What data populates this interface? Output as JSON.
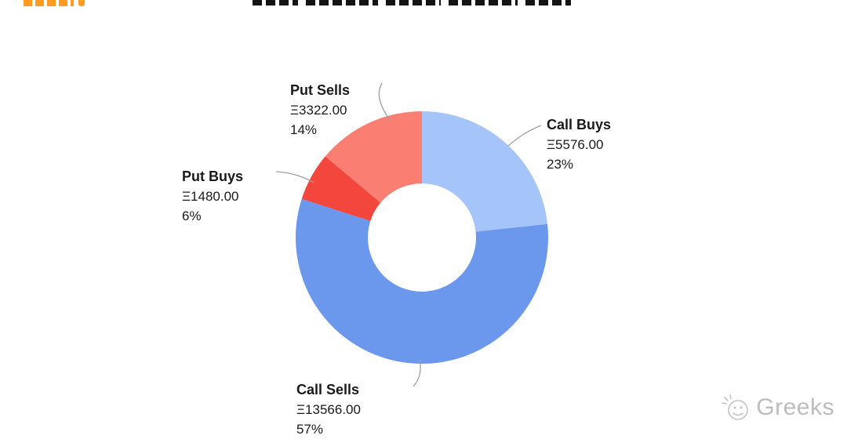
{
  "page": {
    "background": "#ffffff",
    "logo_color": "#ff9b1e",
    "title_color": "#141414"
  },
  "watermark": {
    "label": "Greeks",
    "icon": "wechat-emoji-icon",
    "color": "#bdbdbd"
  },
  "chart_data": {
    "type": "pie",
    "subtype": "donut",
    "direction": "clockwise",
    "start_angle_deg": 0,
    "hole_ratio": 0.43,
    "legend_position": "callout-labels",
    "labels": [
      "Call Buys",
      "Call Sells",
      "Put Buys",
      "Put Sells"
    ],
    "values": [
      5576.0,
      13566.0,
      1480.0,
      3322.0
    ],
    "percents": [
      23,
      57,
      6,
      14
    ],
    "currency_symbol": "Ξ",
    "colors": [
      "#a5c4fa",
      "#6b97ec",
      "#f3473d",
      "#fa7e72"
    ],
    "callouts": [
      {
        "name": "Call Buys",
        "value": "Ξ5576.00",
        "percent": "23%"
      },
      {
        "name": "Call Sells",
        "value": "Ξ13566.00",
        "percent": "57%"
      },
      {
        "name": "Put Buys",
        "value": "Ξ1480.00",
        "percent": "6%"
      },
      {
        "name": "Put Sells",
        "value": "Ξ3322.00",
        "percent": "14%"
      }
    ]
  }
}
